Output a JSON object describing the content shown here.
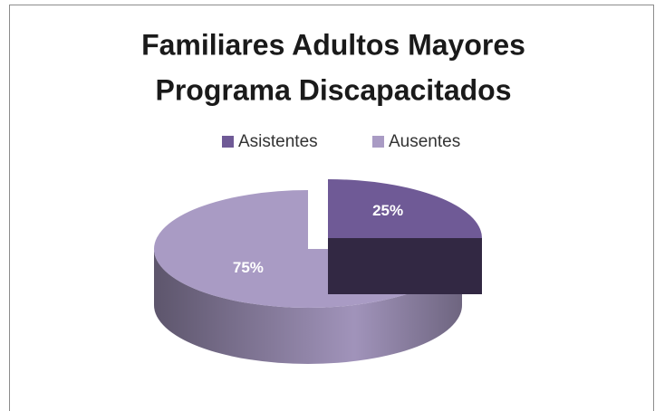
{
  "chart_data": {
    "type": "pie",
    "title": [
      "Familiares Adultos Mayores",
      "Programa Discapacitados"
    ],
    "categories": [
      "Asistentes",
      "Ausentes"
    ],
    "values": [
      25,
      75
    ],
    "value_labels": [
      "25%",
      "75%"
    ],
    "colors": [
      "#6f5a96",
      "#a99bc4"
    ],
    "legend": "top"
  }
}
